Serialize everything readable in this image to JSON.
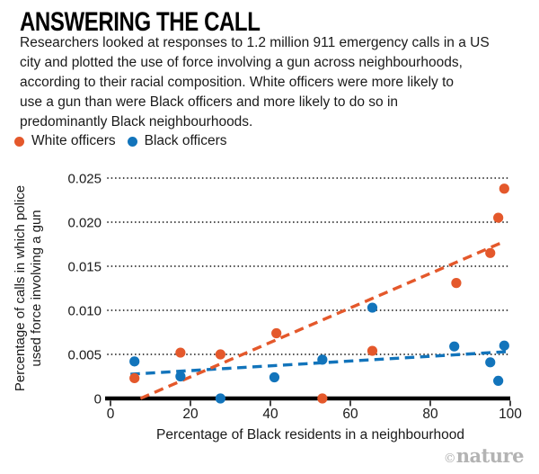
{
  "header": {
    "title": "ANSWERING THE CALL",
    "description_lines": [
      "Researchers looked at responses to 1.2 million 911 emergency calls in a US",
      "city and plotted the use of force involving a gun across neighbourhoods,",
      "according to their racial composition. White officers were more likely to",
      "use a gun than were Black officers and more likely to do so in",
      "predominantly Black neighbourhoods."
    ]
  },
  "legend": {
    "items": [
      {
        "label": "White officers",
        "color": "#E4582B"
      },
      {
        "label": "Black officers",
        "color": "#1274BB"
      }
    ]
  },
  "chart_data": {
    "type": "scatter",
    "xlabel": "Percentage of Black residents in a neighbourhood",
    "ylabel_lines": [
      "Percentage of calls in which police",
      "used force involving a gun"
    ],
    "xlim": [
      0,
      100
    ],
    "ylim": [
      0,
      0.025
    ],
    "xticks": [
      0,
      20,
      40,
      60,
      80,
      100
    ],
    "yticks": [
      0,
      0.005,
      0.01,
      0.015,
      0.02,
      0.025
    ],
    "ytick_labels": [
      "0",
      "0.005",
      "0.010",
      "0.015",
      "0.020",
      "0.025"
    ],
    "grid": "dotted-horizontal",
    "legend_position": "top-left",
    "series": [
      {
        "name": "White officers",
        "color": "#E4582B",
        "points": [
          [
            6,
            0.0023
          ],
          [
            17.5,
            0.0052
          ],
          [
            27.5,
            0.005
          ],
          [
            41.5,
            0.0074
          ],
          [
            53,
            0.0
          ],
          [
            65.5,
            0.0054
          ],
          [
            86.5,
            0.0131
          ],
          [
            95,
            0.0165
          ],
          [
            97,
            0.0205
          ],
          [
            98.5,
            0.0238
          ]
        ],
        "trend": {
          "x1": 7.5,
          "y1": 0.0,
          "x2": 98.5,
          "y2": 0.0178
        }
      },
      {
        "name": "Black officers",
        "color": "#1274BB",
        "points": [
          [
            6,
            0.0042
          ],
          [
            17.5,
            0.0025
          ],
          [
            27.5,
            0.0
          ],
          [
            41,
            0.0024
          ],
          [
            53,
            0.0044
          ],
          [
            65.5,
            0.0103
          ],
          [
            86,
            0.0059
          ],
          [
            95,
            0.0041
          ],
          [
            97,
            0.002
          ],
          [
            98.5,
            0.006
          ]
        ],
        "trend": {
          "x1": 5,
          "y1": 0.00275,
          "x2": 99,
          "y2": 0.0053
        }
      }
    ]
  },
  "footer": {
    "credit_symbol": "©",
    "credit_name": "nature"
  }
}
